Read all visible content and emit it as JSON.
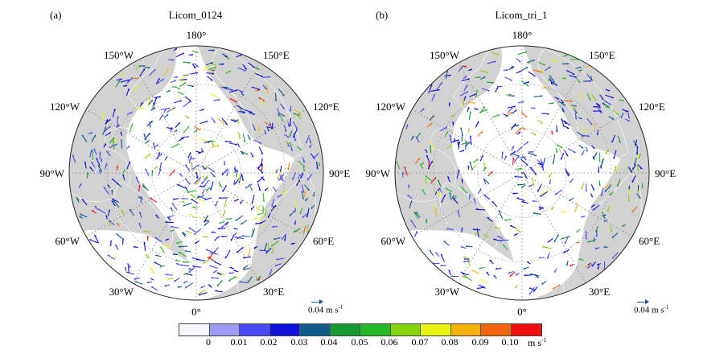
{
  "panels": [
    {
      "id": "a",
      "label": "(a)",
      "title": "Licom_0124",
      "ref_vector": {
        "value_text": "0.04 m s",
        "exponent": "-1"
      },
      "longitude_labels": [
        "180°",
        "150°E",
        "120°E",
        "90°E",
        "60°E",
        "30°E",
        "0°",
        "30°W",
        "60°W",
        "90°W",
        "120°W",
        "150°W"
      ]
    },
    {
      "id": "b",
      "label": "(b)",
      "title": "Licom_tri_1",
      "ref_vector": {
        "value_text": "0.04 m s",
        "exponent": "-1"
      },
      "longitude_labels": [
        "180°",
        "150°E",
        "120°E",
        "90°E",
        "60°E",
        "30°E",
        "0°",
        "30°W",
        "60°W",
        "90°W",
        "120°W",
        "150°W"
      ]
    }
  ],
  "colorbar": {
    "ticks": [
      "0",
      "0.01",
      "0.02",
      "0.03",
      "0.04",
      "0.05",
      "0.06",
      "0.07",
      "0.08",
      "0.09",
      "0.10"
    ],
    "unit_text": "m s",
    "unit_exponent": "-1",
    "colors": [
      "#f6f6fc",
      "#9b9bf5",
      "#4848f5",
      "#1010dd",
      "#0f5c8c",
      "#149a32",
      "#26b826",
      "#86d40d",
      "#eaf50f",
      "#f4b30c",
      "#f4660c",
      "#f00e0e"
    ]
  },
  "map_style": {
    "land_color": "#d2d2d2",
    "ocean_color": "#ffffff",
    "graticule_color": "#777777"
  },
  "map_data": {
    "type": "polar-stereographic vector field",
    "quantity": "ocean current velocity",
    "units": "m s^-1",
    "reference_vector": 0.04
  }
}
